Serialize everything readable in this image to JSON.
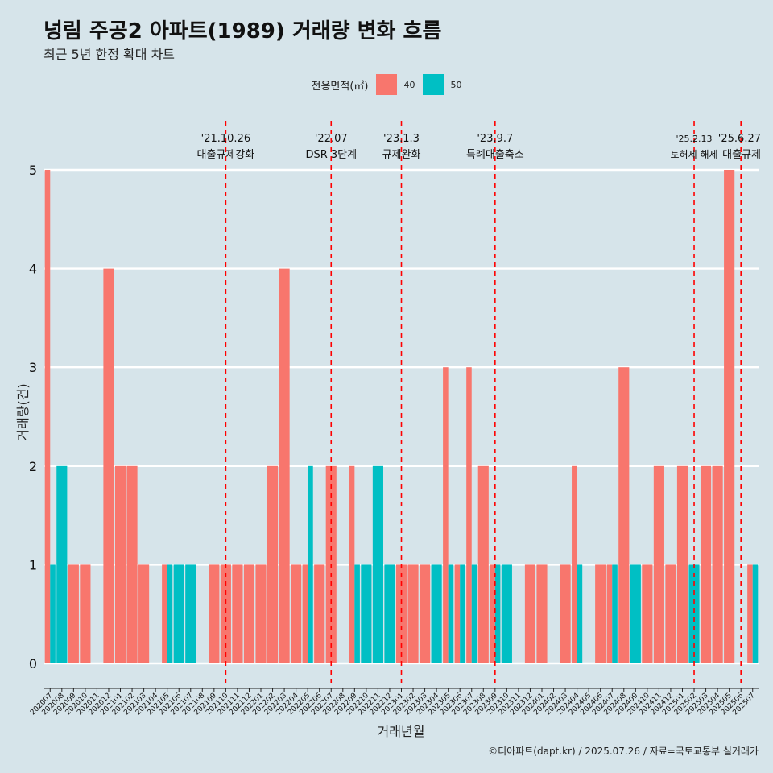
{
  "title": "넝림 주공2 아파트(1989) 거래량 변화 흐름",
  "subtitle": "최근 5년 한정 확대 차트",
  "legend": {
    "title": "전용면적(㎡)",
    "items": [
      {
        "label": "40",
        "color": "#f8766d"
      },
      {
        "label": "50",
        "color": "#00bfc4"
      }
    ]
  },
  "caption": "©디아파트(dapt.kr) / 2025.07.26 / 자료=국토교통부 실거래가",
  "chart_data": {
    "type": "bar",
    "title": "넝림 주공2 아파트(1989) 거래량 변화 흐름",
    "xlabel": "거래년월",
    "ylabel": "거래량(건)",
    "ylim": [
      0,
      5
    ],
    "yticks": [
      0,
      1,
      2,
      3,
      4,
      5
    ],
    "categories": [
      "202007",
      "202008",
      "202009",
      "202010",
      "202011",
      "202012",
      "202101",
      "202102",
      "202103",
      "202104",
      "202105",
      "202106",
      "202107",
      "202108",
      "202109",
      "202110",
      "202111",
      "202112",
      "202201",
      "202202",
      "202203",
      "202204",
      "202205",
      "202206",
      "202207",
      "202208",
      "202209",
      "202210",
      "202211",
      "202212",
      "202301",
      "202302",
      "202303",
      "202304",
      "202305",
      "202306",
      "202307",
      "202308",
      "202309",
      "202310",
      "202311",
      "202312",
      "202401",
      "202402",
      "202403",
      "202404",
      "202405",
      "202406",
      "202407",
      "202408",
      "202409",
      "202410",
      "202411",
      "202412",
      "202501",
      "202502",
      "202503",
      "202504",
      "202505",
      "202506",
      "202507"
    ],
    "series": [
      {
        "name": "40",
        "color": "#f8766d",
        "values": [
          5,
          0,
          1,
          1,
          0,
          4,
          2,
          2,
          1,
          0,
          1,
          0,
          0,
          0,
          1,
          1,
          1,
          1,
          1,
          2,
          4,
          1,
          1,
          1,
          2,
          0,
          2,
          0,
          0,
          0,
          1,
          1,
          1,
          0,
          3,
          1,
          3,
          2,
          1,
          0,
          0,
          1,
          1,
          0,
          1,
          2,
          0,
          1,
          1,
          3,
          0,
          1,
          2,
          1,
          2,
          0,
          2,
          2,
          5,
          0,
          1
        ]
      },
      {
        "name": "50",
        "color": "#00bfc4",
        "values": [
          1,
          2,
          0,
          0,
          0,
          0,
          0,
          0,
          0,
          0,
          1,
          1,
          1,
          0,
          0,
          0,
          0,
          0,
          0,
          0,
          0,
          0,
          2,
          0,
          0,
          0,
          1,
          1,
          2,
          1,
          0,
          0,
          0,
          1,
          1,
          1,
          1,
          0,
          1,
          1,
          0,
          0,
          0,
          0,
          0,
          1,
          0,
          0,
          1,
          0,
          1,
          0,
          0,
          0,
          0,
          1,
          0,
          0,
          0,
          0,
          1
        ]
      }
    ],
    "events": [
      {
        "date_label": "'21.10.26",
        "desc": "대출규제강화",
        "position": 15.5
      },
      {
        "date_label": "'22.07",
        "desc": "DSR 3단계",
        "position": 24.5
      },
      {
        "date_label": "'23.1.3",
        "desc": "규제완화",
        "position": 30.5
      },
      {
        "date_label": "'23.9.7",
        "desc": "특례대출축소",
        "position": 38.5
      },
      {
        "date_label": "'25.2.13",
        "desc": "토허제 해제",
        "position": 55.5
      },
      {
        "date_label": "'25.6.27",
        "desc": "대출규제",
        "position": 59.5
      }
    ]
  }
}
